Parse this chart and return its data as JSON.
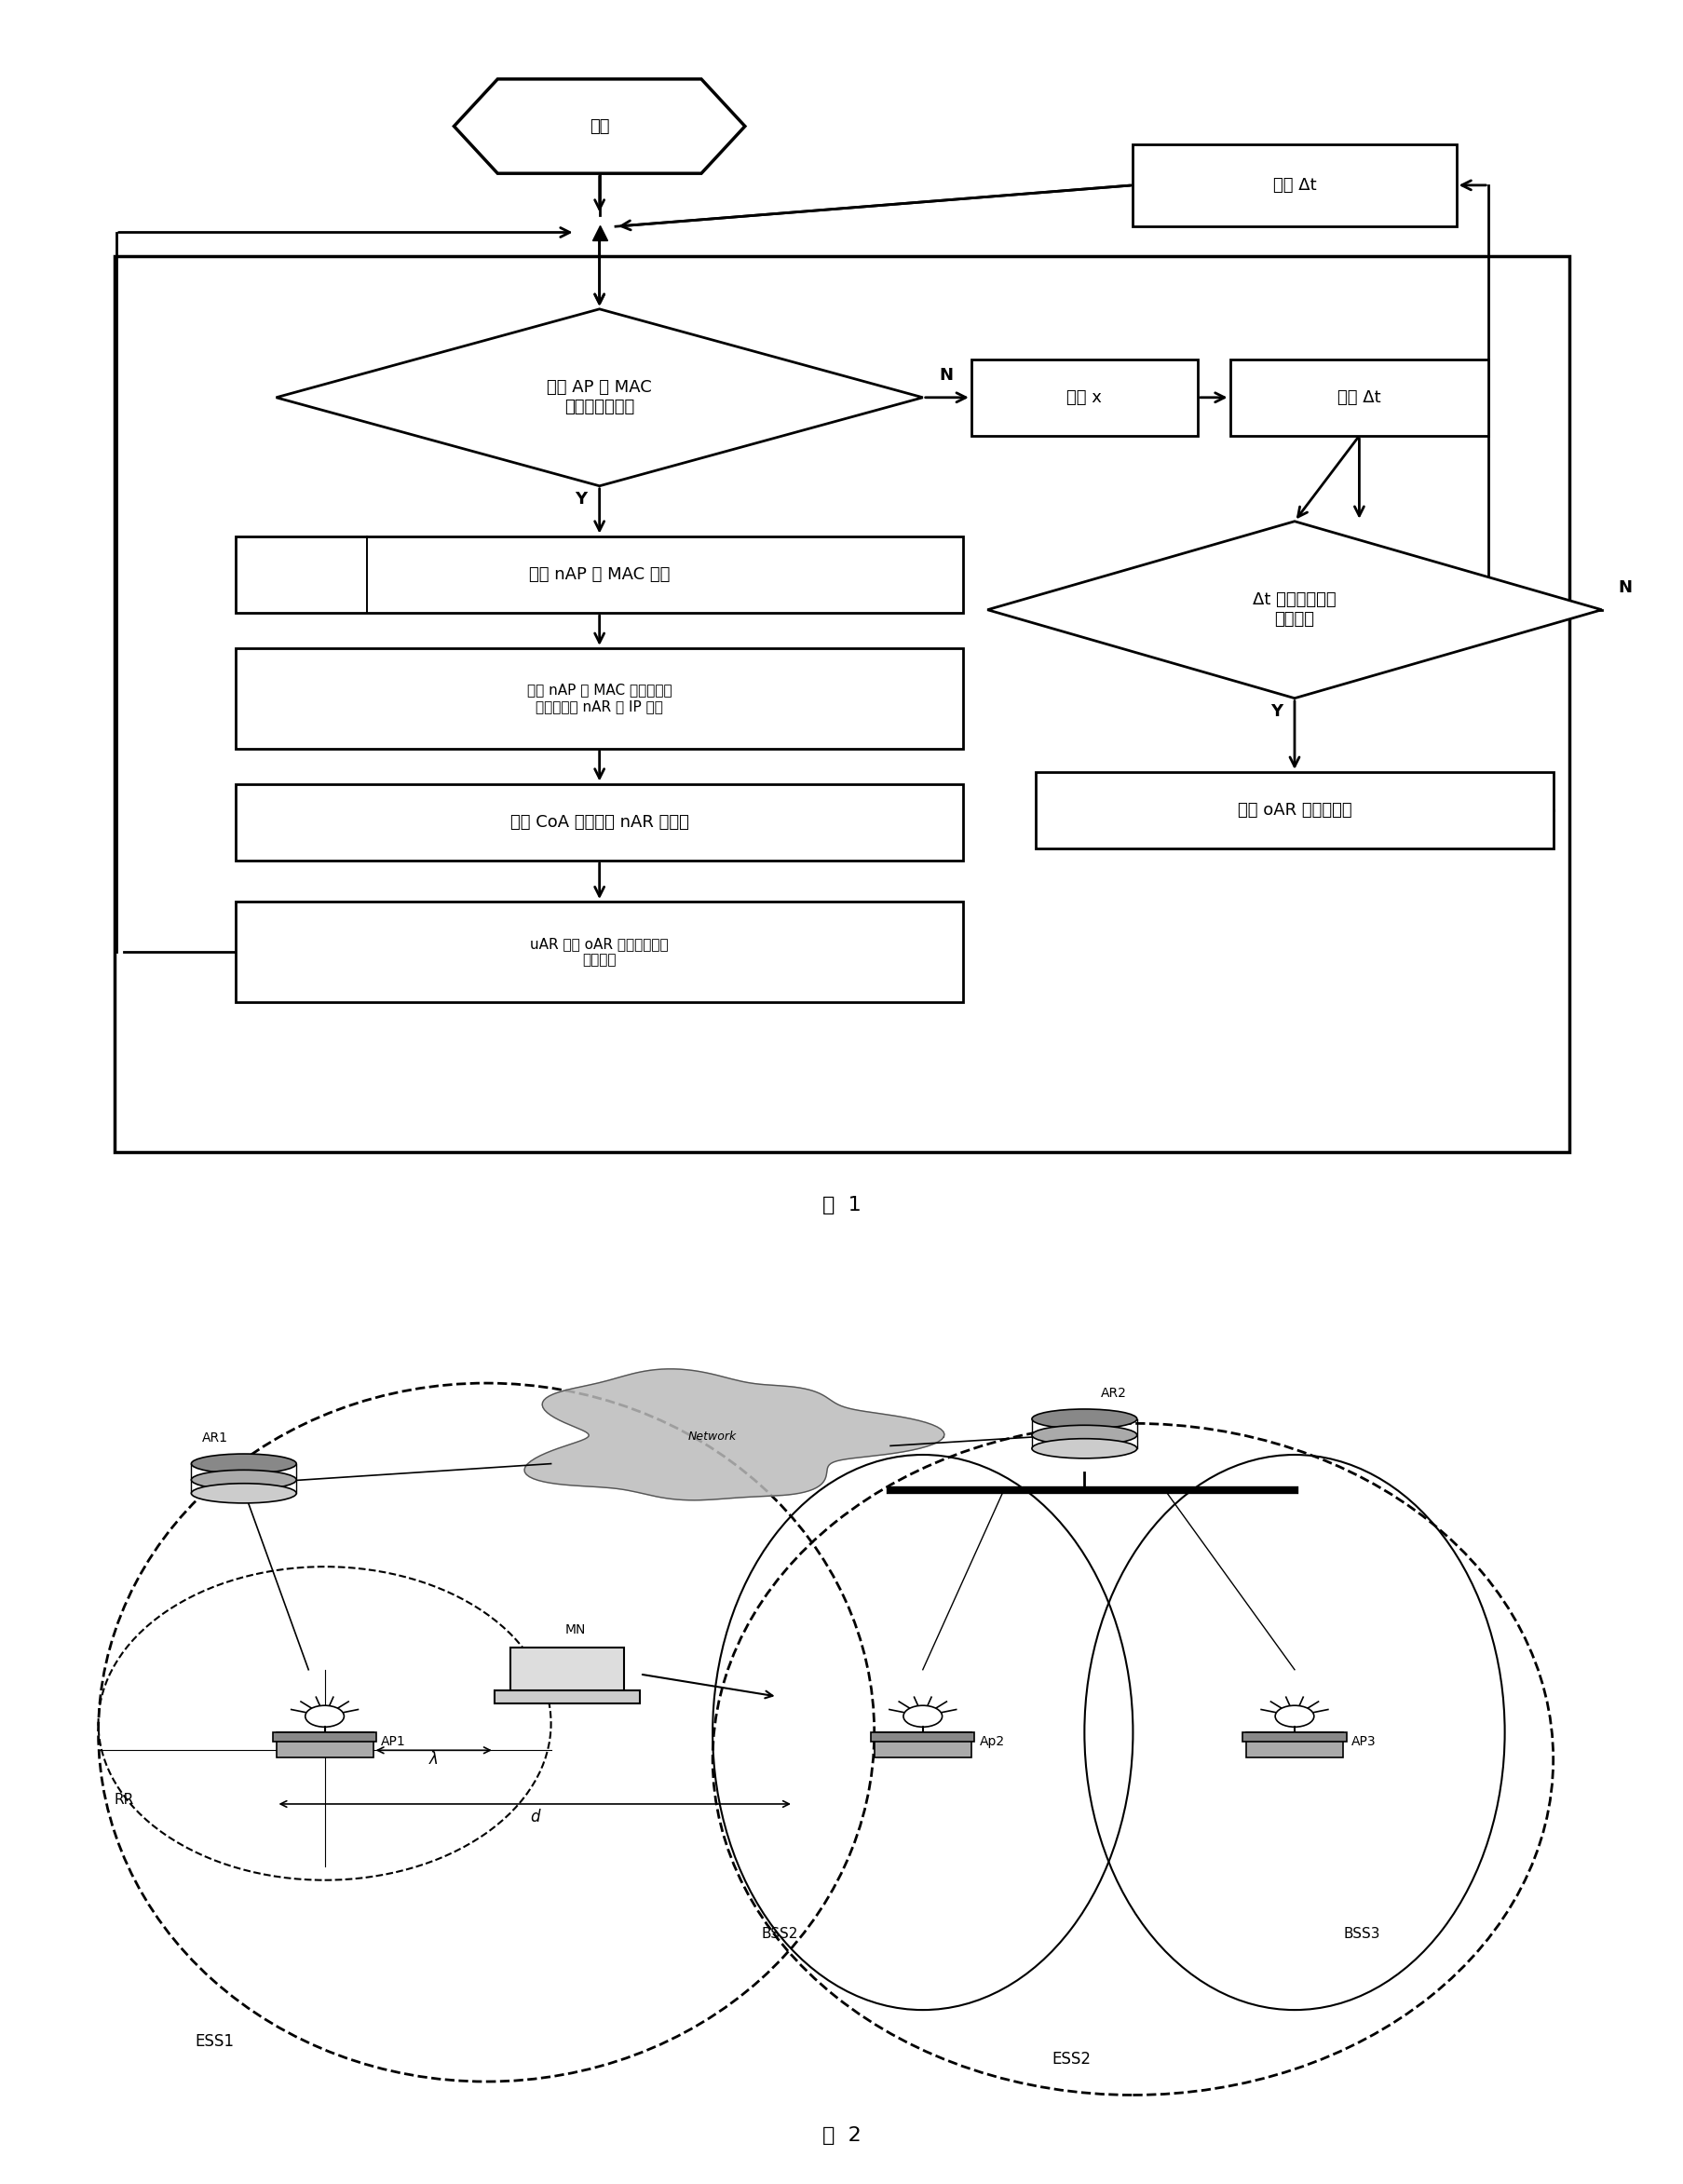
{
  "fig_width": 18.08,
  "fig_height": 23.45,
  "bg_color": "#ffffff",
  "fc_title": "图  1",
  "net_title": "图  2",
  "nodes": {
    "start_label": "开始",
    "delay_label": "延时 Δt",
    "compare_label": "比较 AP 的 MAC\n地址是否变化？",
    "get_x_label": "获得 x",
    "calc_dt_label": "计算 Δt",
    "cmp_dt_label": "Δt 是否小于预注\n册门限？",
    "cache_label": "缓存 nAP 的 MAC 地址",
    "find_label": "根据 nAP 的 MAC 地址在缓存\n列表中查找 nAR 的 IP 地址",
    "build_label": "构造 CoA 并建立到 nAR 的连接",
    "notify_label": "通知 oAR 进行预注册",
    "cancel_label": "uAR 告知 oAR 执行取消预注\n册的功能",
    "N_label": "N",
    "Y_label": "Y"
  },
  "net": {
    "AR1_label": "AR1",
    "AR2_label": "AR2",
    "MN_label": "MN",
    "AP1_label": "AP1",
    "AP2_label": "Ap2",
    "AP3_label": "AP3",
    "RR_label": "RR",
    "ESS1_label": "ESS1",
    "ESS2_label": "ESS2",
    "BSS2_label": "BSS2",
    "BSS3_label": "BSS3",
    "Network_label": "Network",
    "lambda_label": "λ",
    "d_label": "d"
  }
}
